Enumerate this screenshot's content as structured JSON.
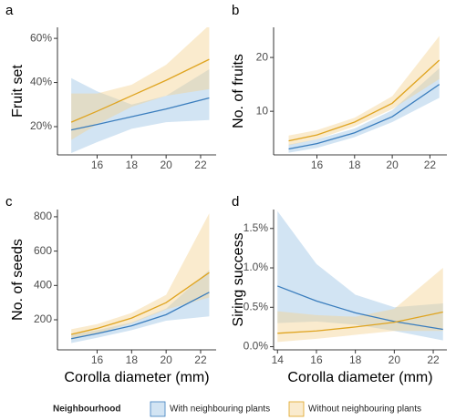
{
  "legend": {
    "title": "Neighbourhood",
    "position": "bottom"
  },
  "chart_data": [
    {
      "type": "line",
      "label": "a",
      "ylabel": "Fruit set",
      "x": [
        14.5,
        16,
        18,
        20,
        22.5
      ],
      "xlim": [
        13.7,
        22.9
      ],
      "xticks": [
        16,
        18,
        20,
        22
      ],
      "ylim": [
        7.2,
        65
      ],
      "yticks": [
        {
          "value": 20,
          "label": "20%"
        },
        {
          "value": 40,
          "label": "40%"
        },
        {
          "value": 60,
          "label": "60%"
        }
      ],
      "series": [
        {
          "name": "With neighbouring plants",
          "color": "#3a7dbd",
          "band_color": "#9cc3e4",
          "values": [
            18.5,
            21,
            24.5,
            28,
            33
          ],
          "lower": [
            8,
            13,
            19,
            22,
            23
          ],
          "upper": [
            42,
            36,
            30,
            34,
            46
          ]
        },
        {
          "name": "Without neighbouring plants",
          "color": "#dfa420",
          "band_color": "#f3d393",
          "values": [
            22,
            27,
            34,
            41,
            50.5
          ],
          "lower": [
            14,
            21,
            29,
            34,
            37
          ],
          "upper": [
            35,
            35,
            39,
            48,
            66
          ]
        }
      ]
    },
    {
      "type": "line",
      "label": "b",
      "ylabel": "No. of fruits",
      "x": [
        14.5,
        16,
        18,
        20,
        22.5
      ],
      "xlim": [
        13.7,
        22.9
      ],
      "xticks": [
        16,
        18,
        20,
        22
      ],
      "ylim": [
        1.9,
        25.6
      ],
      "yticks": [
        10,
        20
      ],
      "series": [
        {
          "name": "With neighbouring plants",
          "color": "#3a7dbd",
          "band_color": "#9cc3e4",
          "values": [
            3,
            4,
            6,
            9,
            15
          ],
          "lower": [
            2.3,
            3.2,
            5.2,
            8,
            12.5
          ],
          "upper": [
            3.8,
            4.8,
            6.8,
            10.2,
            18
          ]
        },
        {
          "name": "Without neighbouring plants",
          "color": "#dfa420",
          "band_color": "#f3d393",
          "values": [
            4.5,
            5.6,
            8,
            11.5,
            19.5
          ],
          "lower": [
            3.7,
            4.8,
            7.2,
            10.4,
            16
          ],
          "upper": [
            5.5,
            6.5,
            8.8,
            12.8,
            24
          ]
        }
      ]
    },
    {
      "type": "line",
      "label": "c",
      "ylabel": "No. of seeds",
      "xlabel": "Corolla diameter (mm)",
      "x": [
        14.5,
        16,
        18,
        20,
        22.5
      ],
      "xlim": [
        13.7,
        22.9
      ],
      "xticks": [
        16,
        18,
        20,
        22
      ],
      "ylim": [
        25,
        842
      ],
      "yticks": [
        200,
        400,
        600,
        800
      ],
      "series": [
        {
          "name": "With neighbouring plants",
          "color": "#3a7dbd",
          "band_color": "#9cc3e4",
          "values": [
            90,
            120,
            165,
            230,
            360
          ],
          "lower": [
            65,
            95,
            140,
            195,
            220
          ],
          "upper": [
            115,
            140,
            185,
            265,
            490
          ]
        },
        {
          "name": "Without neighbouring plants",
          "color": "#dfa420",
          "band_color": "#f3d393",
          "values": [
            115,
            150,
            210,
            300,
            475
          ],
          "lower": [
            85,
            120,
            180,
            260,
            330
          ],
          "upper": [
            145,
            175,
            240,
            345,
            820
          ]
        }
      ]
    },
    {
      "type": "line",
      "label": "d",
      "ylabel": "Siring success",
      "xlabel": "Corolla diameter (mm)",
      "x": [
        14,
        16,
        18,
        20,
        22.5
      ],
      "xlim": [
        13.8,
        22.7
      ],
      "xticks": [
        14,
        16,
        18,
        20,
        22
      ],
      "ylim": [
        -0.04,
        1.74
      ],
      "yticks": [
        {
          "value": 0,
          "label": "0.0%"
        },
        {
          "value": 0.5,
          "label": "0.5%"
        },
        {
          "value": 1,
          "label": "1.0%"
        },
        {
          "value": 1.5,
          "label": "1.5%"
        }
      ],
      "series": [
        {
          "name": "With neighbouring plants",
          "color": "#3a7dbd",
          "band_color": "#9cc3e4",
          "values": [
            0.77,
            0.58,
            0.43,
            0.32,
            0.22
          ],
          "lower": [
            0.3,
            0.32,
            0.28,
            0.2,
            0.08
          ],
          "upper": [
            1.72,
            1.05,
            0.66,
            0.5,
            0.55
          ]
        },
        {
          "name": "Without neighbouring plants",
          "color": "#dfa420",
          "band_color": "#f3d393",
          "values": [
            0.17,
            0.2,
            0.25,
            0.31,
            0.44
          ],
          "lower": [
            0.06,
            0.1,
            0.15,
            0.2,
            0.2
          ],
          "upper": [
            0.45,
            0.4,
            0.38,
            0.48,
            1.0
          ]
        }
      ]
    }
  ]
}
